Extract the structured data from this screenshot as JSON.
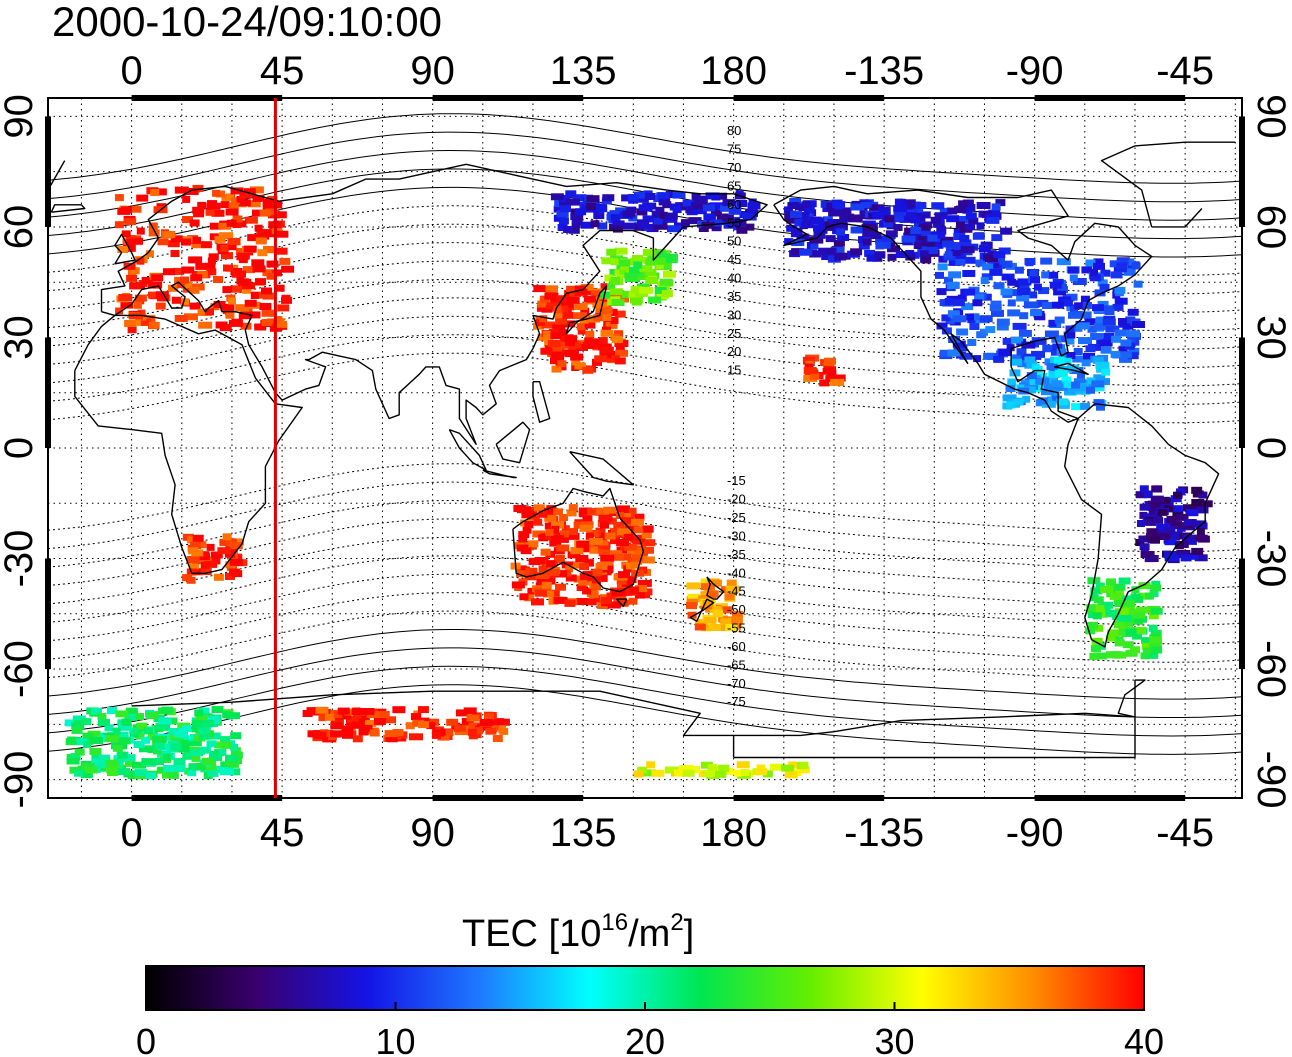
{
  "title": "2000-10-24/09:10:00",
  "lon_ticks": [
    "0",
    "45",
    "90",
    "135",
    "180",
    "-135",
    "-90",
    "-45"
  ],
  "lat_ticks": [
    "90",
    "60",
    "30",
    "0",
    "-30",
    "-60",
    "-90"
  ],
  "map": {
    "projection": "equirectangular",
    "lon_range": [
      -25,
      332
    ],
    "lat_range": [
      -95,
      95
    ],
    "grid": "dotted, 15 degree",
    "coastlines": true,
    "terminator_longitude": 43
  },
  "contour_labels": [
    {
      "label": "80",
      "lat": 80
    },
    {
      "label": "75",
      "lat": 75
    },
    {
      "label": "70",
      "lat": 70
    },
    {
      "label": "65",
      "lat": 65
    },
    {
      "label": "60",
      "lat": 60
    },
    {
      "label": "55",
      "lat": 55
    },
    {
      "label": "50",
      "lat": 50
    },
    {
      "label": "45",
      "lat": 45
    },
    {
      "label": "40",
      "lat": 40
    },
    {
      "label": "35",
      "lat": 35
    },
    {
      "label": "30",
      "lat": 30
    },
    {
      "label": "25",
      "lat": 25
    },
    {
      "label": "20",
      "lat": 20
    },
    {
      "label": "15",
      "lat": 15
    },
    {
      "label": "-15",
      "lat": -15
    },
    {
      "label": "-20",
      "lat": -20
    },
    {
      "label": "-25",
      "lat": -25
    },
    {
      "label": "-30",
      "lat": -30
    },
    {
      "label": "-35",
      "lat": -35
    },
    {
      "label": "-40",
      "lat": -40
    },
    {
      "label": "-45",
      "lat": -45
    },
    {
      "label": "-50",
      "lat": -50
    },
    {
      "label": "-55",
      "lat": -55
    },
    {
      "label": "-60",
      "lat": -60
    },
    {
      "label": "-65",
      "lat": -65
    },
    {
      "label": "-70",
      "lat": -70
    },
    {
      "label": "-75",
      "lat": -75
    }
  ],
  "colorbar": {
    "label_main": "TEC  [10",
    "label_sup1": "16",
    "label_mid": "/m",
    "label_sup2": "2",
    "label_end": "]",
    "ticks": [
      "0",
      "10",
      "20",
      "30",
      "40"
    ],
    "range": [
      0,
      40
    ],
    "colors": [
      "#000000",
      "#3a006e",
      "#1414e6",
      "#1e78ff",
      "#00ffff",
      "#00e650",
      "#66ee00",
      "#ffff00",
      "#ff8c00",
      "#ff0000"
    ]
  },
  "tec_regions": [
    {
      "name": "europe",
      "lon": [
        -5,
        45
      ],
      "lat": [
        33,
        72
      ],
      "tec": 39
    },
    {
      "name": "east-asia",
      "lon": [
        120,
        145
      ],
      "lat": [
        22,
        45
      ],
      "tec": 39
    },
    {
      "name": "japan-north",
      "lon": [
        140,
        160
      ],
      "lat": [
        40,
        55
      ],
      "tec": 26
    },
    {
      "name": "siberia",
      "lon": [
        125,
        185
      ],
      "lat": [
        60,
        70
      ],
      "tec": 8
    },
    {
      "name": "north-america",
      "lon": [
        240,
        300
      ],
      "lat": [
        25,
        52
      ],
      "tec": 11
    },
    {
      "name": "alaska-canada",
      "lon": [
        195,
        260
      ],
      "lat": [
        52,
        68
      ],
      "tec": 8
    },
    {
      "name": "gulf-caribbean",
      "lon": [
        260,
        290
      ],
      "lat": [
        12,
        25
      ],
      "tec": 15
    },
    {
      "name": "australia",
      "lon": [
        113,
        153
      ],
      "lat": [
        -42,
        -15
      ],
      "tec": 39
    },
    {
      "name": "new-zealand",
      "lon": [
        165,
        180
      ],
      "lat": [
        -48,
        -35
      ],
      "tec": 35
    },
    {
      "name": "south-africa",
      "lon": [
        15,
        32
      ],
      "lat": [
        -35,
        -23
      ],
      "tec": 39
    },
    {
      "name": "south-america-north",
      "lon": [
        300,
        320
      ],
      "lat": [
        -30,
        -10
      ],
      "tec": 6
    },
    {
      "name": "south-america-south",
      "lon": [
        285,
        305
      ],
      "lat": [
        -56,
        -35
      ],
      "tec": 24
    },
    {
      "name": "hawaii",
      "lon": [
        200,
        210
      ],
      "lat": [
        18,
        26
      ],
      "tec": 39
    },
    {
      "name": "antarctica-west",
      "lon": [
        -20,
        30
      ],
      "lat": [
        -88,
        -70
      ],
      "tec": 22
    },
    {
      "name": "antarctica-east",
      "lon": [
        50,
        110
      ],
      "lat": [
        -78,
        -70
      ],
      "tec": 39
    },
    {
      "name": "antarctica-pole",
      "lon": [
        150,
        200
      ],
      "lat": [
        -88,
        -85
      ],
      "tec": 30
    }
  ]
}
